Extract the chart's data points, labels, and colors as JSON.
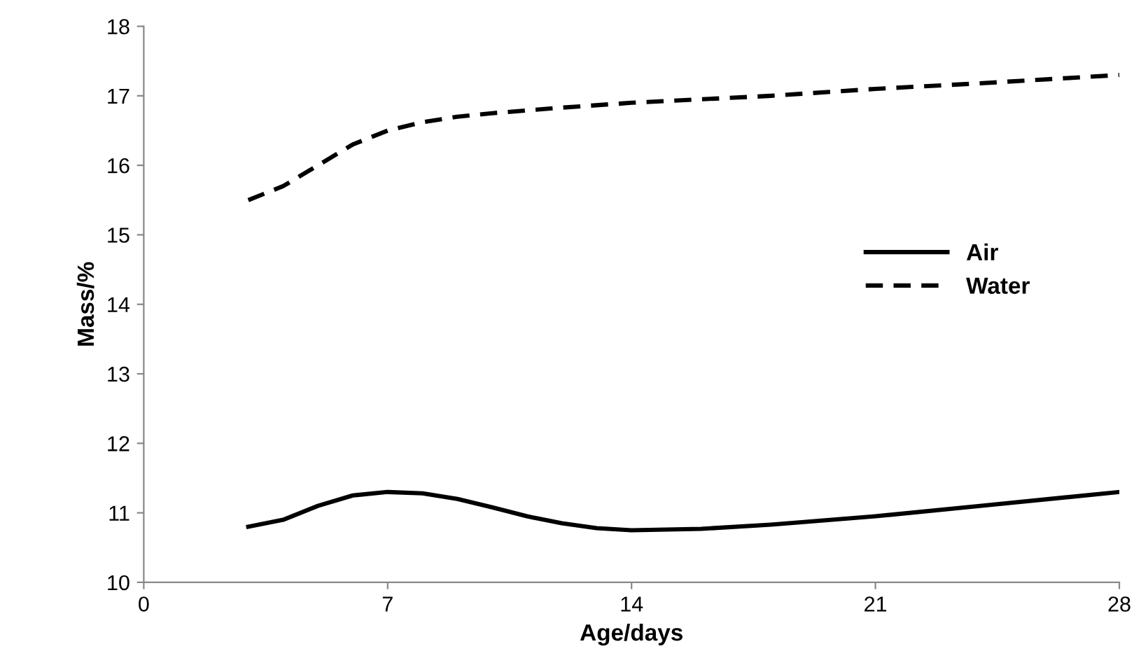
{
  "chart_data": {
    "type": "line",
    "xlabel": "Age/days",
    "ylabel": "Mass/%",
    "series": [
      {
        "name": "Air",
        "color": "#000000",
        "line_style": "solid",
        "x": [
          3,
          4,
          5,
          6,
          7,
          8,
          9,
          10,
          11,
          12,
          13,
          14,
          16,
          18,
          21,
          24,
          28
        ],
        "values": [
          10.8,
          10.9,
          11.1,
          11.25,
          11.3,
          11.28,
          11.2,
          11.08,
          10.95,
          10.85,
          10.78,
          10.75,
          10.77,
          10.83,
          10.95,
          11.1,
          11.3
        ]
      },
      {
        "name": "Water",
        "color": "#000000",
        "line_style": "dashed",
        "x": [
          3,
          4,
          5,
          6,
          7,
          8,
          9,
          10,
          12,
          14,
          18,
          21,
          24,
          28
        ],
        "values": [
          15.5,
          15.7,
          16.0,
          16.3,
          16.5,
          16.62,
          16.7,
          16.75,
          16.83,
          16.9,
          17.0,
          17.1,
          17.18,
          17.3
        ]
      }
    ],
    "xlim": [
      0,
      28
    ],
    "xticks": [
      0,
      7,
      14,
      21,
      28
    ],
    "ylim": [
      10,
      18
    ],
    "yticks": [
      10,
      11,
      12,
      13,
      14,
      15,
      16,
      17,
      18
    ],
    "grid": false,
    "legend": "right",
    "marker": "none"
  }
}
